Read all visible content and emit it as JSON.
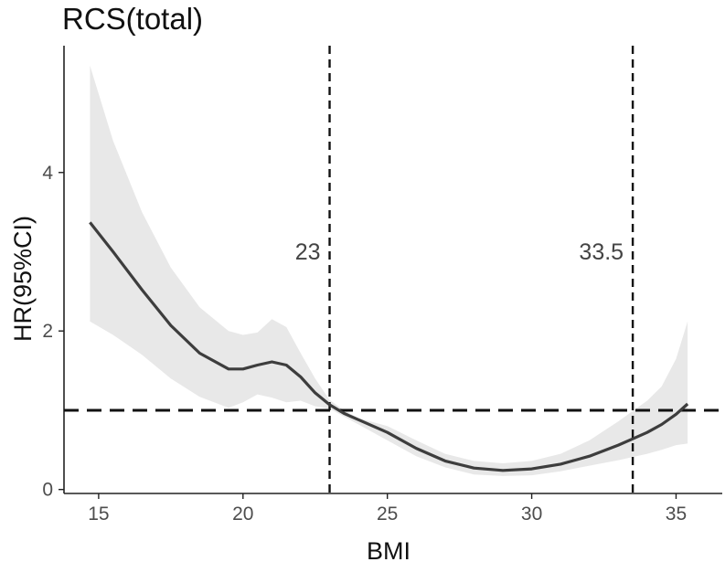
{
  "chart_data": {
    "type": "line",
    "title": "RCS(total)",
    "xlabel": "BMI",
    "ylabel": "HR(95%CI)",
    "xlim": [
      13.8,
      36.6
    ],
    "ylim": [
      -0.05,
      5.6
    ],
    "x_ticks": [
      15,
      20,
      25,
      30,
      35
    ],
    "y_ticks": [
      0,
      2,
      4
    ],
    "reference_line": {
      "y": 1,
      "style": "dashed"
    },
    "vlines": [
      {
        "x": 23,
        "label": "23"
      },
      {
        "x": 33.5,
        "label": "33.5"
      }
    ],
    "series": [
      {
        "name": "HR",
        "x": [
          14.7,
          15.5,
          16.5,
          17.5,
          18.5,
          19.5,
          20.0,
          20.5,
          21.0,
          21.5,
          22.0,
          22.5,
          23.0,
          23.5,
          24.0,
          25.0,
          26.0,
          27.0,
          28.0,
          29.0,
          30.0,
          31.0,
          32.0,
          33.0,
          33.5,
          34.0,
          34.5,
          35.0,
          35.4
        ],
        "y": [
          3.37,
          3.0,
          2.52,
          2.07,
          1.72,
          1.52,
          1.52,
          1.57,
          1.61,
          1.57,
          1.42,
          1.22,
          1.07,
          0.96,
          0.88,
          0.72,
          0.52,
          0.36,
          0.27,
          0.24,
          0.26,
          0.32,
          0.42,
          0.56,
          0.64,
          0.72,
          0.82,
          0.95,
          1.08
        ]
      }
    ],
    "ci_upper": [
      5.35,
      4.4,
      3.5,
      2.8,
      2.3,
      2.0,
      1.95,
      1.98,
      2.15,
      2.05,
      1.72,
      1.4,
      1.13,
      1.0,
      0.9,
      0.8,
      0.62,
      0.45,
      0.36,
      0.33,
      0.36,
      0.45,
      0.62,
      0.86,
      0.99,
      1.12,
      1.3,
      1.65,
      2.12
    ],
    "ci_lower": [
      2.12,
      1.95,
      1.7,
      1.4,
      1.17,
      1.03,
      1.1,
      1.2,
      1.16,
      1.1,
      1.12,
      1.05,
      1.02,
      0.92,
      0.82,
      0.62,
      0.42,
      0.28,
      0.19,
      0.17,
      0.18,
      0.23,
      0.3,
      0.37,
      0.41,
      0.45,
      0.5,
      0.56,
      0.58
    ],
    "colors": {
      "line": "#3d3d3d",
      "band": "#e8e8e8",
      "axis": "#222222",
      "tick_label": "#4d4d4d"
    }
  }
}
